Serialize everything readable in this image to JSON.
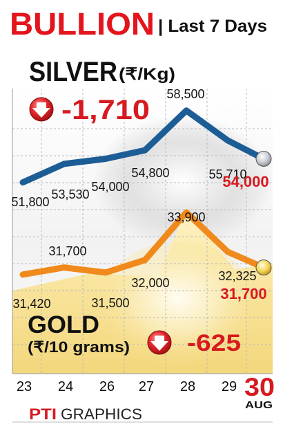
{
  "header": {
    "title": "BULLION",
    "subtitle": "| Last 7 Days"
  },
  "silver": {
    "name": "SILVER",
    "unit": "(₹/Kg)",
    "change": "-1,710",
    "latest": "54,000",
    "labels": [
      "51,800",
      "53,530",
      "54,000",
      "54,800",
      "58,500",
      "55,710"
    ]
  },
  "gold": {
    "name": "GOLD",
    "unit": "(₹/10 grams)",
    "change": "-625",
    "latest": "31,700",
    "labels": [
      "31,420",
      "31,700",
      "31,500",
      "32,000",
      "33,900",
      "32,325"
    ]
  },
  "footer": {
    "brand": "PTI",
    "credit": "GRAPHICS",
    "month": "AUG"
  },
  "colors": {
    "title_red": "#e3141c",
    "value_red": "#d71920",
    "silver_line": "#1d5d96",
    "gold_line": "#f08a1c",
    "grid": "#b9b9b9"
  },
  "chart_data": [
    {
      "type": "line",
      "title": "SILVER (₹/Kg)",
      "categories": [
        "23",
        "24",
        "26",
        "27",
        "28",
        "29",
        "30"
      ],
      "values": [
        51800,
        53530,
        54000,
        54800,
        58500,
        55710,
        54000
      ],
      "ylim": [
        51000,
        59000
      ]
    },
    {
      "type": "line",
      "title": "GOLD (₹/10 grams)",
      "categories": [
        "23",
        "24",
        "26",
        "27",
        "28",
        "29",
        "30"
      ],
      "values": [
        31420,
        31700,
        31500,
        32000,
        33900,
        32325,
        31700
      ],
      "ylim": [
        31000,
        34200
      ]
    }
  ],
  "x_axis": {
    "ticks": [
      "23",
      "24",
      "26",
      "27",
      "28",
      "29",
      "30"
    ]
  }
}
